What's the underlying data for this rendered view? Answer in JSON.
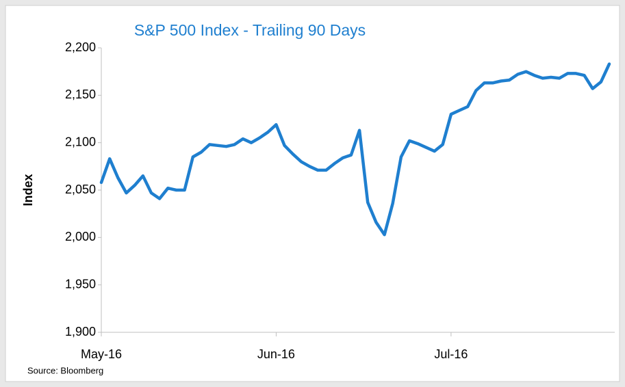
{
  "chart_data": {
    "type": "line",
    "title": "S&P 500 Index - Trailing 90 Days",
    "y_label": "Index",
    "source": "Source: Bloomberg",
    "categories": [
      "May-16",
      null,
      null,
      null,
      null,
      null,
      null,
      null,
      null,
      null,
      null,
      null,
      null,
      null,
      null,
      null,
      null,
      null,
      null,
      null,
      null,
      "Jun-16",
      null,
      null,
      null,
      null,
      null,
      null,
      null,
      null,
      null,
      null,
      null,
      null,
      null,
      null,
      null,
      null,
      null,
      null,
      null,
      null,
      "Jul-16",
      null,
      null,
      null,
      null,
      null,
      null,
      null,
      null,
      null,
      null,
      null,
      null,
      null,
      null,
      null,
      null,
      null,
      null,
      null
    ],
    "series": [
      {
        "name": "S&P 500 Index",
        "color": "#1f7fcf",
        "values": [
          2058,
          2083,
          2063,
          2047,
          2055,
          2065,
          2047,
          2041,
          2052,
          2050,
          2050,
          2085,
          2090,
          2098,
          2097,
          2096,
          2098,
          2104,
          2100,
          2105,
          2111,
          2119,
          2097,
          2088,
          2080,
          2075,
          2071,
          2071,
          2078,
          2084,
          2087,
          2113,
          2037,
          2016,
          2003,
          2036,
          2085,
          2102,
          2099,
          2095,
          2091,
          2098,
          2130,
          2134,
          2138,
          2155,
          2163,
          2163,
          2165,
          2166,
          2172,
          2175,
          2171,
          2168,
          2169,
          2168,
          2173,
          2173,
          2171,
          2157,
          2164,
          2183
        ]
      }
    ],
    "ylim": [
      1900,
      2200
    ],
    "yticks": [
      {
        "value": 1900,
        "label": "1,900"
      },
      {
        "value": 1950,
        "label": "1,950"
      },
      {
        "value": 2000,
        "label": "2,000"
      },
      {
        "value": 2050,
        "label": "2,050"
      },
      {
        "value": 2100,
        "label": "2,100"
      },
      {
        "value": 2150,
        "label": "2,150"
      },
      {
        "value": 2200,
        "label": "2,200"
      }
    ],
    "grid": false
  }
}
